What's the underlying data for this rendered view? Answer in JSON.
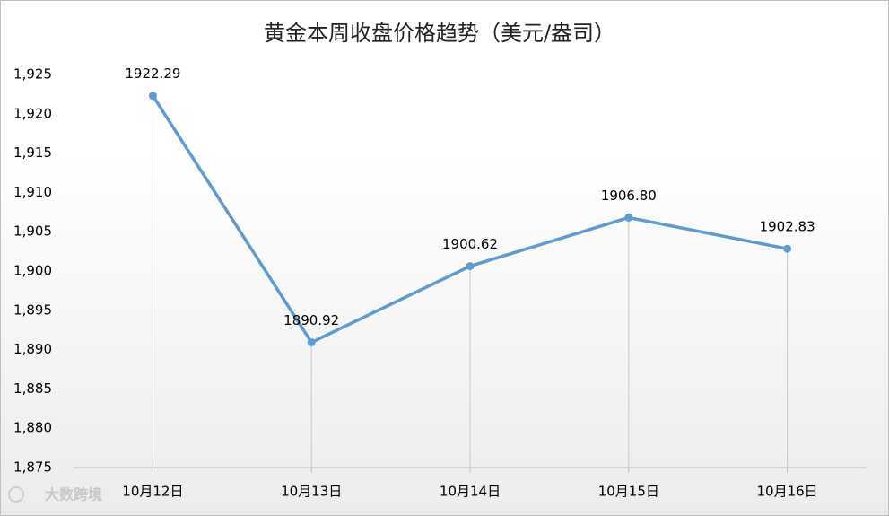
{
  "chart_data": {
    "type": "line",
    "title": "黄金本周收盘价格趋势（美元/盎司）",
    "categories": [
      "10月12日",
      "10月13日",
      "10月14日",
      "10月15日",
      "10月16日"
    ],
    "values": [
      1922.29,
      1890.92,
      1900.62,
      1906.8,
      1902.83
    ],
    "value_labels": [
      "1922.29",
      "1890.92",
      "1900.62",
      "1906.80",
      "1902.83"
    ],
    "color": "#5e9bd0",
    "ylim": [
      1875,
      1925
    ],
    "yticks": [
      {
        "value": 1875,
        "label": "1,875"
      },
      {
        "value": 1880,
        "label": "1,880"
      },
      {
        "value": 1885,
        "label": "1,885"
      },
      {
        "value": 1890,
        "label": "1,890"
      },
      {
        "value": 1895,
        "label": "1,895"
      },
      {
        "value": 1900,
        "label": "1,900"
      },
      {
        "value": 1905,
        "label": "1,905"
      },
      {
        "value": 1910,
        "label": "1,910"
      },
      {
        "value": 1915,
        "label": "1,915"
      },
      {
        "value": 1920,
        "label": "1,920"
      },
      {
        "value": 1925,
        "label": "1,925"
      }
    ],
    "drop_lines": true,
    "grid": false,
    "watermark": "大数跨境"
  }
}
